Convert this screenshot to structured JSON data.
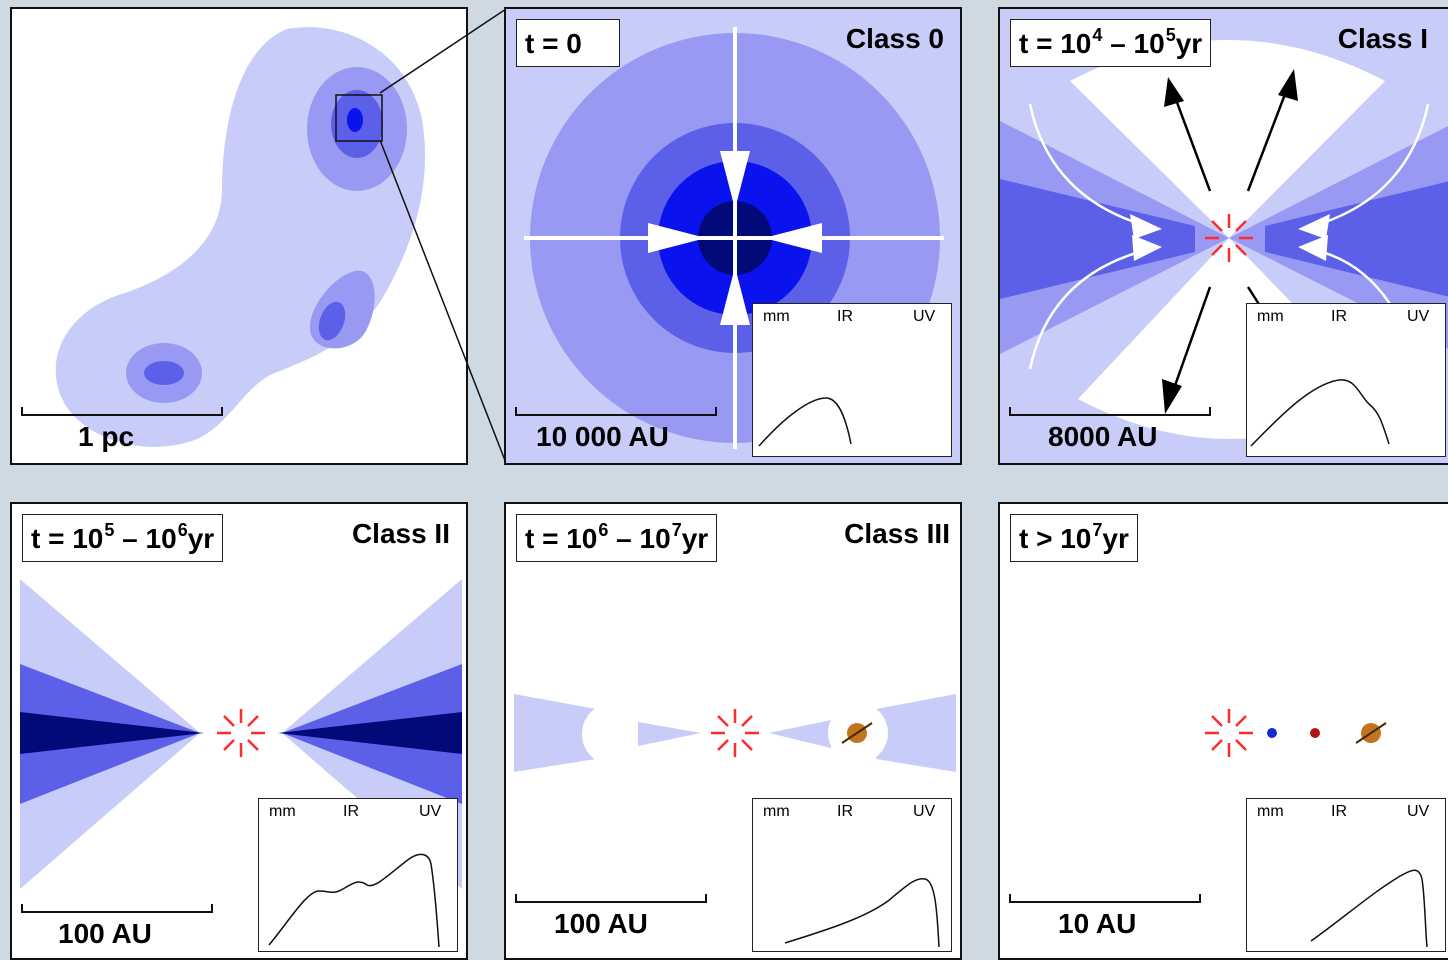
{
  "colors": {
    "light": "#c8ccf9",
    "mid": "#9899f2",
    "dark": "#5c60e8",
    "bright": "#0a12ee",
    "deep": "#020a7a",
    "star": "#ff2a2a",
    "planet_orange": "#c27520",
    "planet_blue": "#1428d8",
    "planet_red": "#b01515"
  },
  "sed_axis": {
    "mm": "mm",
    "ir": "IR",
    "uv": "UV"
  },
  "panels": {
    "cloud": {
      "scale_label": "1 pc"
    },
    "class0": {
      "time_base": "t = 0",
      "class": "Class 0",
      "scale_label": "10 000 AU"
    },
    "class1": {
      "t_pre": "t = 10",
      "t_exp1": "4",
      "t_mid": " – 10",
      "t_exp2": "5",
      "t_post": "yr",
      "class": "Class I",
      "scale_label": "8000 AU"
    },
    "class2": {
      "t_pre": "t = 10",
      "t_exp1": "5",
      "t_mid": " – 10",
      "t_exp2": "6",
      "t_post": "yr",
      "class": "Class II",
      "scale_label": "100 AU"
    },
    "class3": {
      "t_pre": "t = 10",
      "t_exp1": "6",
      "t_mid": " – 10",
      "t_exp2": "7",
      "t_post": "yr",
      "class": "Class III",
      "scale_label": "100 AU"
    },
    "planetary": {
      "t_pre": "t > 10",
      "t_exp1": "7",
      "t_post": "yr",
      "scale_label": "10 AU"
    }
  }
}
